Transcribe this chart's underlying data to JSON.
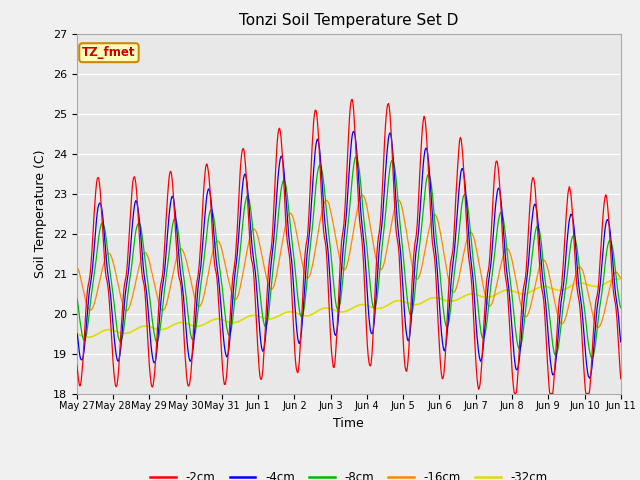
{
  "title": "Tonzi Soil Temperature Set D",
  "xlabel": "Time",
  "ylabel": "Soil Temperature (C)",
  "ylim": [
    18.0,
    27.0
  ],
  "yticks": [
    18.0,
    19.0,
    20.0,
    21.0,
    22.0,
    23.0,
    24.0,
    25.0,
    26.0,
    27.0
  ],
  "xtick_labels": [
    "May 27",
    "May 28",
    "May 29",
    "May 30",
    "May 31",
    "Jun 1",
    "Jun 2",
    "Jun 3",
    "Jun 4",
    "Jun 5",
    "Jun 6",
    "Jun 7",
    "Jun 8",
    "Jun 9",
    "Jun 10",
    "Jun 11"
  ],
  "legend_labels": [
    "-2cm",
    "-4cm",
    "-8cm",
    "-16cm",
    "-32cm"
  ],
  "legend_colors": [
    "#ff0000",
    "#0000ff",
    "#00bb00",
    "#ff8800",
    "#dddd00"
  ],
  "annotation_text": "TZ_fmet",
  "annotation_bg": "#ffffbb",
  "annotation_border": "#cc8800",
  "fig_bg": "#f0f0f0",
  "plot_bg": "#e8e8e8",
  "line_colors": [
    "#ff0000",
    "#0000ff",
    "#00bb00",
    "#ff8800",
    "#dddd00"
  ],
  "grid_color": "#ffffff",
  "n_points": 720,
  "days": 15
}
